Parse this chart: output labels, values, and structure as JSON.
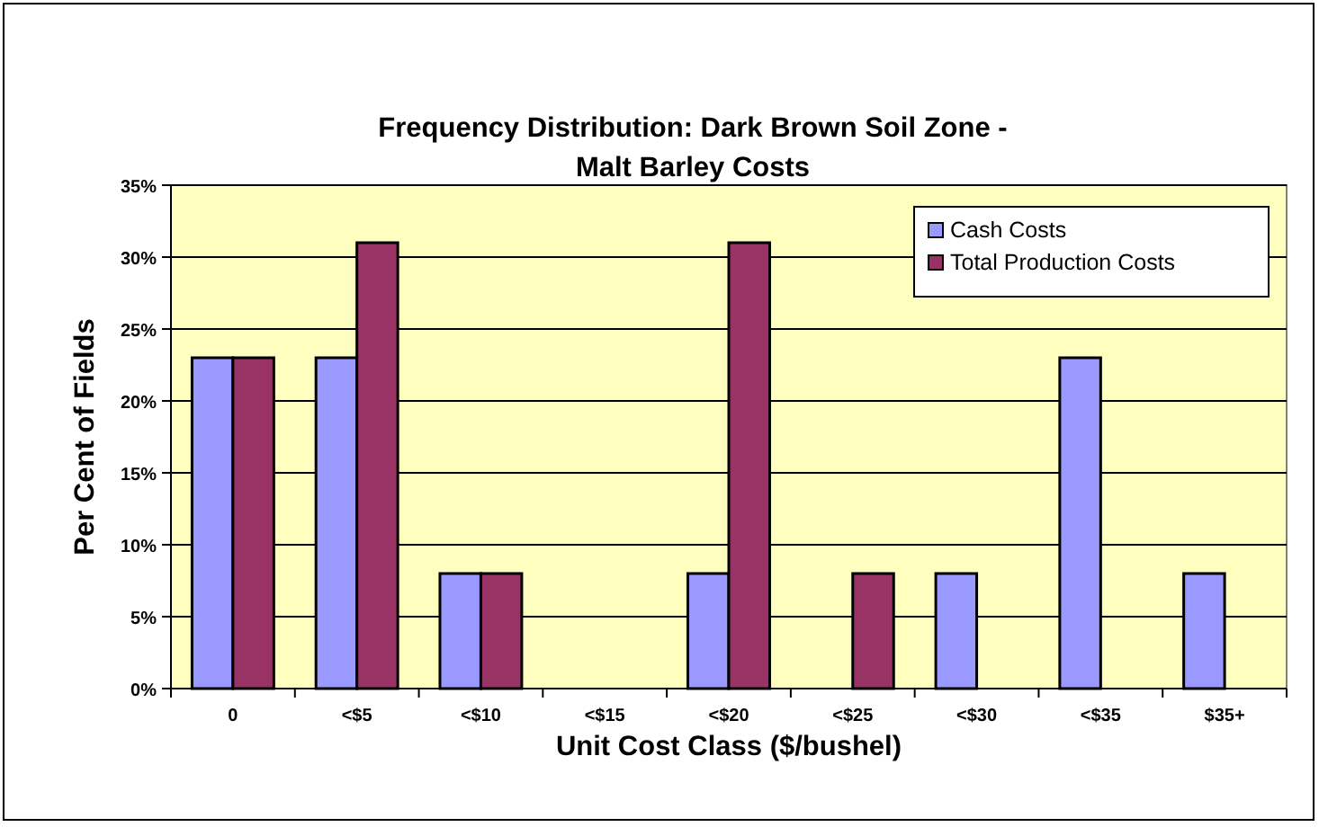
{
  "chart_data": {
    "type": "bar",
    "title": "Frequency Distribution: Dark Brown Soil Zone - Malt Barley Costs",
    "xlabel": "Unit Cost Class ($/bushel)",
    "ylabel": "Per Cent of Fields",
    "categories": [
      "0",
      "<$5",
      "<$10",
      "<$15",
      "<$20",
      "<$25",
      "<$30",
      "<$35",
      "$35+"
    ],
    "series": [
      {
        "name": "Cash Costs",
        "color": "#9999ff",
        "values": [
          23,
          23,
          8,
          0,
          8,
          0,
          8,
          23,
          8
        ]
      },
      {
        "name": "Total Production Costs",
        "color": "#993366",
        "values": [
          23,
          31,
          8,
          0,
          31,
          8,
          0,
          0,
          0
        ]
      }
    ],
    "ylim": [
      0,
      35
    ],
    "yticks": [
      {
        "value": 0,
        "label": "0%"
      },
      {
        "value": 5,
        "label": "5%"
      },
      {
        "value": 10,
        "label": "10%"
      },
      {
        "value": 15,
        "label": "15%"
      },
      {
        "value": 20,
        "label": "20%"
      },
      {
        "value": 25,
        "label": "25%"
      },
      {
        "value": 30,
        "label": "30%"
      },
      {
        "value": 35,
        "label": "35%"
      }
    ],
    "grid": "y",
    "legend": "top right"
  }
}
